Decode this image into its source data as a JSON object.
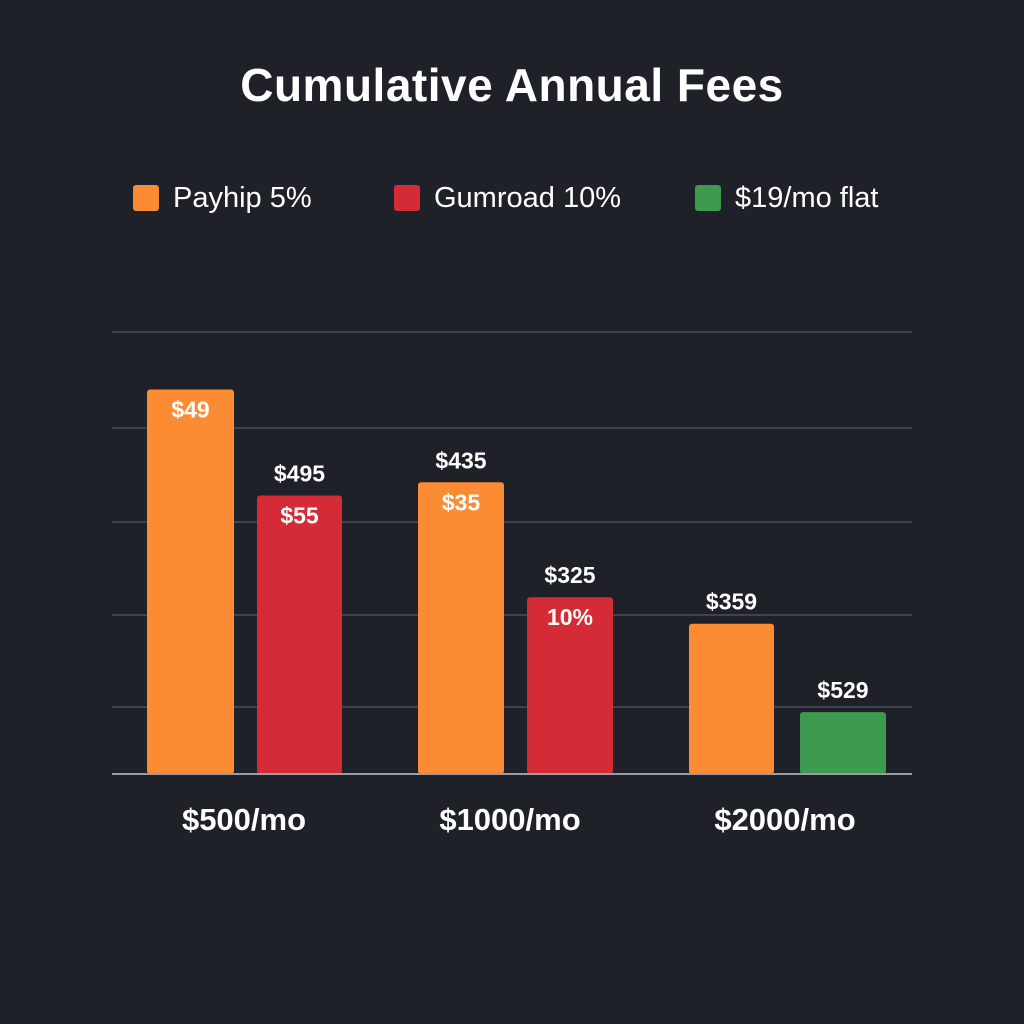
{
  "chart_data": {
    "type": "bar",
    "title": "Cumulative Annual Fees",
    "categories": [
      "$500/mo",
      "$1000/mo",
      "$2000/mo"
    ],
    "legend_position": "top",
    "grid": true,
    "ylim": [
      0,
      10
    ],
    "series": [
      {
        "name": "Payhip 5%",
        "color": "#fb8c33"
      },
      {
        "name": "Gumroad 10%",
        "color": "#d42b36"
      },
      {
        "name": "$19/mo flat",
        "color": "#3e9a4f"
      }
    ],
    "bars": [
      {
        "category": "$500/mo",
        "series": "Payhip 5%",
        "value": 8.7,
        "label_inside": "$49",
        "label_above": ""
      },
      {
        "category": "$500/mo",
        "series": "Gumroad 10%",
        "value": 6.3,
        "label_inside": "$55",
        "label_above": "$495"
      },
      {
        "category": "$1000/mo",
        "series": "Payhip 5%",
        "value": 6.6,
        "label_inside": "$35",
        "label_above": "$435"
      },
      {
        "category": "$1000/mo",
        "series": "Gumroad 10%",
        "value": 4.0,
        "label_inside": "10%",
        "label_above": "$325"
      },
      {
        "category": "$2000/mo",
        "series": "Payhip 5%",
        "value": 3.4,
        "label_inside": "",
        "label_above": "$359"
      },
      {
        "category": "$2000/mo",
        "series": "$19/mo flat",
        "value": 1.4,
        "label_inside": "",
        "label_above": "$529"
      }
    ]
  }
}
